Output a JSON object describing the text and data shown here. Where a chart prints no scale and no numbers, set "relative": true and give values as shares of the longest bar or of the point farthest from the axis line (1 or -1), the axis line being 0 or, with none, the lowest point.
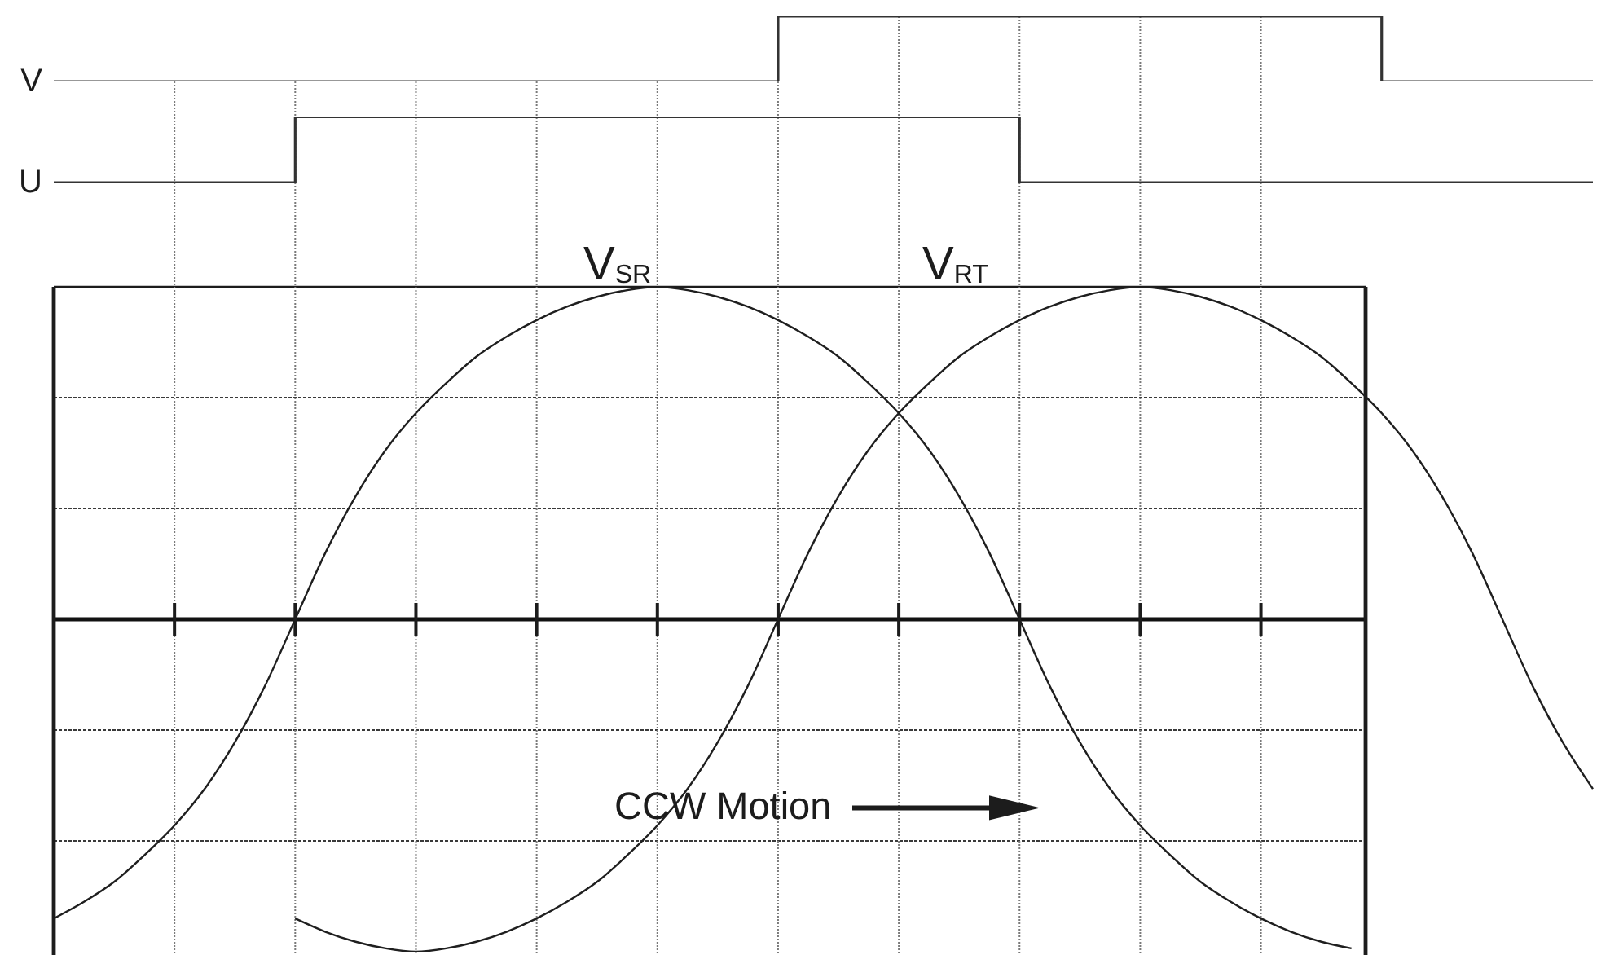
{
  "chart_data": [
    {
      "type": "step",
      "relative": true,
      "grid": "x",
      "categories": [
        null,
        null,
        null,
        null,
        null,
        null,
        null,
        null,
        null,
        null,
        null,
        null,
        null,
        null,
        null,
        null,
        null,
        null,
        null,
        null,
        null,
        null,
        null,
        null,
        null,
        null,
        null,
        null,
        null,
        null,
        null,
        null,
        null,
        null,
        null,
        null,
        null,
        null,
        null,
        null,
        null,
        null,
        null,
        null,
        null,
        null,
        null,
        null,
        null,
        null,
        null,
        null
      ],
      "series": [
        {
          "name": "V",
          "color": "#333333",
          "values": [
            0,
            0,
            0,
            0,
            0,
            0,
            0,
            0,
            0,
            0,
            0,
            0,
            0,
            0,
            0,
            0,
            0,
            0,
            0,
            0,
            0,
            0,
            0,
            0,
            1,
            1,
            1,
            1,
            1,
            1,
            1,
            1,
            1,
            1,
            1,
            1,
            1,
            1,
            1,
            1,
            1,
            1,
            1,
            1,
            0,
            0,
            0,
            0,
            0,
            0,
            0,
            0
          ]
        }
      ]
    },
    {
      "type": "step",
      "relative": true,
      "grid": "x",
      "categories": [
        null,
        null,
        null,
        null,
        null,
        null,
        null,
        null,
        null,
        null,
        null,
        null,
        null,
        null,
        null,
        null,
        null,
        null,
        null,
        null,
        null,
        null,
        null,
        null,
        null,
        null,
        null,
        null,
        null,
        null,
        null,
        null,
        null,
        null,
        null,
        null,
        null,
        null,
        null,
        null,
        null,
        null,
        null,
        null,
        null,
        null,
        null,
        null,
        null,
        null,
        null,
        null
      ],
      "series": [
        {
          "name": "U",
          "color": "#333333",
          "values": [
            0,
            0,
            0,
            0,
            0,
            0,
            0,
            0,
            1,
            1,
            1,
            1,
            1,
            1,
            1,
            1,
            1,
            1,
            1,
            1,
            1,
            1,
            1,
            1,
            1,
            1,
            1,
            1,
            1,
            1,
            1,
            1,
            0,
            0,
            0,
            0,
            0,
            0,
            0,
            0,
            0,
            0,
            0,
            0,
            0,
            0,
            0,
            0,
            0,
            0,
            0,
            0
          ]
        }
      ]
    },
    {
      "type": "line",
      "relative": true,
      "grid": true,
      "annotations": [
        "CCW Motion"
      ],
      "categories": [
        null,
        null,
        null,
        null,
        null,
        null,
        null,
        null,
        null,
        null,
        null,
        null,
        null,
        null,
        null,
        null,
        null,
        null,
        null,
        null,
        null,
        null,
        null,
        null,
        null,
        null,
        null,
        null,
        null,
        null,
        null,
        null,
        null,
        null,
        null,
        null,
        null,
        null,
        null,
        null,
        null,
        null,
        null,
        null,
        null,
        null,
        null,
        null,
        null,
        null,
        null,
        null
      ],
      "series": [
        {
          "name": "V$_{SR}$",
          "color": "#1f1f1f",
          "values": [
            -0.9,
            -0.85,
            -0.79,
            -0.71,
            -0.62,
            -0.51,
            -0.37,
            -0.2,
            0,
            0.2,
            0.37,
            0.51,
            0.62,
            0.71,
            0.79,
            0.85,
            0.9,
            0.94,
            0.97,
            0.99,
            1.0,
            0.99,
            0.97,
            0.94,
            0.9,
            0.85,
            0.79,
            0.71,
            0.62,
            0.51,
            0.37,
            0.2,
            0,
            -0.2,
            -0.37,
            -0.51,
            -0.62,
            -0.71,
            -0.79,
            -0.85,
            -0.9,
            -0.94,
            -0.97,
            -0.99,
            null,
            null,
            null,
            null,
            null,
            null,
            null,
            null
          ]
        },
        {
          "name": "V$_{RT}$",
          "color": "#1f1f1f",
          "values": [
            null,
            null,
            null,
            null,
            null,
            null,
            null,
            null,
            -0.9,
            -0.94,
            -0.97,
            -0.99,
            -1.0,
            -0.99,
            -0.97,
            -0.94,
            -0.9,
            -0.85,
            -0.79,
            -0.71,
            -0.62,
            -0.51,
            -0.37,
            -0.2,
            0,
            0.2,
            0.37,
            0.51,
            0.62,
            0.71,
            0.79,
            0.85,
            0.9,
            0.94,
            0.97,
            0.99,
            1.0,
            0.99,
            0.97,
            0.94,
            0.9,
            0.85,
            0.79,
            0.71,
            0.62,
            0.51,
            0.37,
            0.2,
            0,
            -0.2,
            -0.37,
            -0.51
          ]
        }
      ]
    }
  ]
}
